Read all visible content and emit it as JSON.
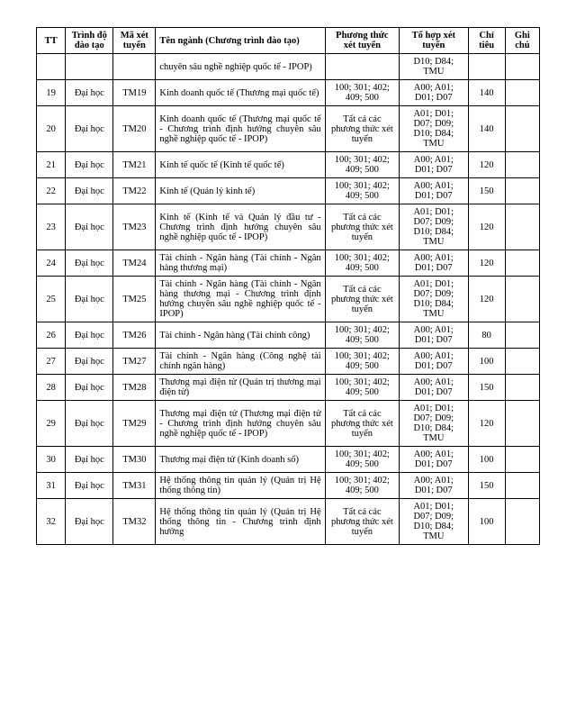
{
  "headers": {
    "tt": "TT",
    "trinh": "Trình độ đào tạo",
    "ma": "Mã xét tuyển",
    "ten": "Tên ngành (Chương trình đào tạo)",
    "pt": "Phương thức xét tuyển",
    "tohop": "Tổ hợp xét tuyển",
    "chi": "Chỉ tiêu",
    "ghi": "Ghi chú"
  },
  "rows": [
    {
      "tt": "",
      "trinh": "",
      "ma": "",
      "ten": "chuyên sâu nghề nghiệp quốc tế - IPOP)",
      "pt": "",
      "tohop": "D10; D84; TMU",
      "chi": "",
      "ghi": ""
    },
    {
      "tt": "19",
      "trinh": "Đại học",
      "ma": "TM19",
      "ten": "Kinh doanh quốc tế (Thương mại quốc tế)",
      "pt": "100; 301; 402; 409; 500",
      "tohop": "A00; A01; D01; D07",
      "chi": "140",
      "ghi": ""
    },
    {
      "tt": "20",
      "trinh": "Đại học",
      "ma": "TM20",
      "ten": "Kinh doanh quốc tế (Thương mại quốc tế - Chương trình định hướng chuyên sâu nghề nghiệp quốc tế - IPOP)",
      "pt": "Tất cả các phương thức xét tuyển",
      "tohop": "A01; D01; D07; D09; D10; D84; TMU",
      "chi": "140",
      "ghi": ""
    },
    {
      "tt": "21",
      "trinh": "Đại học",
      "ma": "TM21",
      "ten": "Kinh tế quốc tế (Kinh tế quốc tế)",
      "pt": "100; 301; 402; 409; 500",
      "tohop": "A00; A01; D01; D07",
      "chi": "120",
      "ghi": ""
    },
    {
      "tt": "22",
      "trinh": "Đại học",
      "ma": "TM22",
      "ten": "Kinh tế (Quản lý kinh tế)",
      "pt": "100; 301; 402; 409; 500",
      "tohop": "A00; A01; D01; D07",
      "chi": "150",
      "ghi": ""
    },
    {
      "tt": "23",
      "trinh": "Đại học",
      "ma": "TM23",
      "ten": "Kinh tế (Kinh tế và Quản lý đầu tư - Chương trình định hướng chuyên sâu nghề nghiệp quốc tế - IPOP)",
      "pt": "Tất cả các phương thức xét tuyển",
      "tohop": "A01; D01; D07; D09; D10; D84; TMU",
      "chi": "120",
      "ghi": ""
    },
    {
      "tt": "24",
      "trinh": "Đại học",
      "ma": "TM24",
      "ten": "Tài chính - Ngân hàng (Tài chính - Ngân hàng thương mại)",
      "pt": "100; 301; 402; 409; 500",
      "tohop": "A00; A01; D01; D07",
      "chi": "120",
      "ghi": ""
    },
    {
      "tt": "25",
      "trinh": "Đại học",
      "ma": "TM25",
      "ten": "Tài chính - Ngân hàng (Tài chính - Ngân hàng thương mại - Chương trình định hướng chuyên sâu nghề nghiệp quốc tế - IPOP)",
      "pt": "Tất cả các phương thức xét tuyển",
      "tohop": "A01; D01; D07; D09; D10; D84; TMU",
      "chi": "120",
      "ghi": ""
    },
    {
      "tt": "26",
      "trinh": "Đại học",
      "ma": "TM26",
      "ten": "Tài chính - Ngân hàng (Tài chính công)",
      "pt": "100; 301; 402; 409; 500",
      "tohop": "A00; A01; D01; D07",
      "chi": "80",
      "ghi": ""
    },
    {
      "tt": "27",
      "trinh": "Đại học",
      "ma": "TM27",
      "ten": "Tài chính - Ngân hàng (Công nghệ tài chính ngân hàng)",
      "pt": "100; 301; 402; 409; 500",
      "tohop": "A00; A01; D01; D07",
      "chi": "100",
      "ghi": ""
    },
    {
      "tt": "28",
      "trinh": "Đại học",
      "ma": "TM28",
      "ten": "Thương mại điện tử (Quản trị thương mại điện tử)",
      "pt": "100; 301; 402; 409; 500",
      "tohop": "A00; A01; D01; D07",
      "chi": "150",
      "ghi": ""
    },
    {
      "tt": "29",
      "trinh": "Đại học",
      "ma": "TM29",
      "ten": "Thương mại điện tử (Thương mại điện tử - Chương trình định hướng chuyên sâu nghề nghiệp quốc tế - IPOP)",
      "pt": "Tất cả các phương thức xét tuyển",
      "tohop": "A01; D01; D07; D09; D10; D84; TMU",
      "chi": "120",
      "ghi": ""
    },
    {
      "tt": "30",
      "trinh": "Đại học",
      "ma": "TM30",
      "ten": "Thương mại điện tử (Kinh doanh số)",
      "pt": "100; 301; 402; 409; 500",
      "tohop": "A00; A01; D01; D07",
      "chi": "100",
      "ghi": ""
    },
    {
      "tt": "31",
      "trinh": "Đại học",
      "ma": "TM31",
      "ten": "Hệ thống thông tin quản lý (Quản trị Hệ thống thông tin)",
      "pt": "100; 301; 402; 409; 500",
      "tohop": "A00; A01; D01; D07",
      "chi": "150",
      "ghi": ""
    },
    {
      "tt": "32",
      "trinh": "Đại học",
      "ma": "TM32",
      "ten": "Hệ thống thông tin quản lý (Quản trị Hệ thống thông tin - Chương trình định hướng",
      "pt": "Tất cả các phương thức xét tuyển",
      "tohop": "A01; D01; D07; D09; D10; D84; TMU",
      "chi": "100",
      "ghi": ""
    }
  ]
}
